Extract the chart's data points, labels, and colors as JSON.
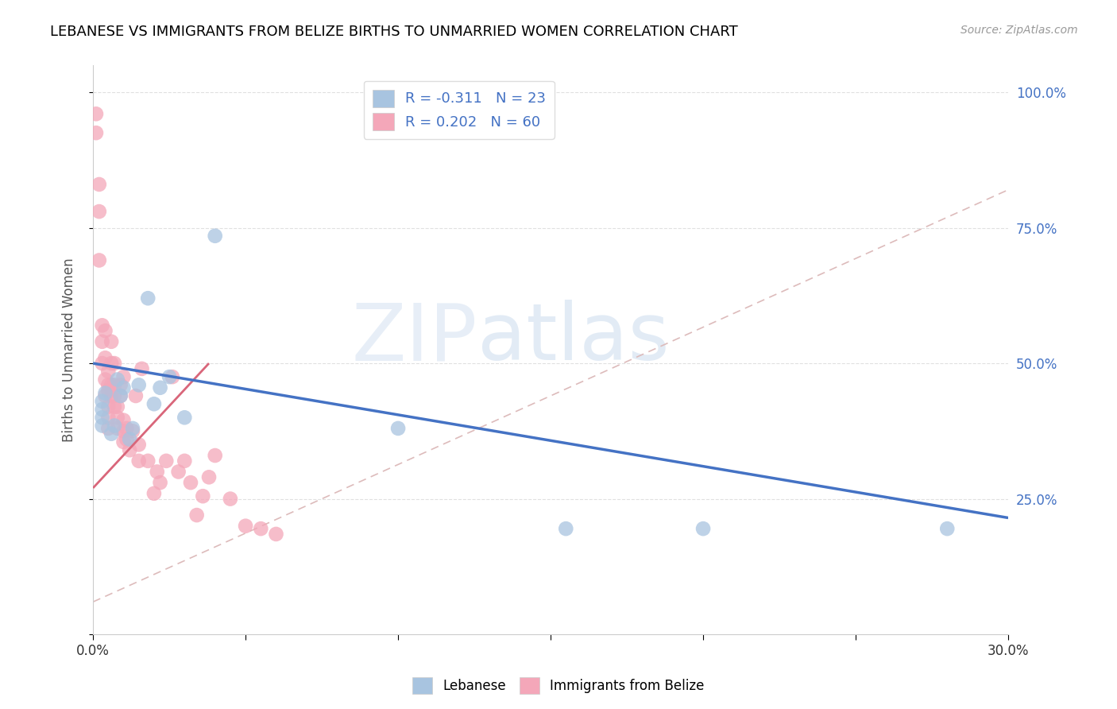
{
  "title": "LEBANESE VS IMMIGRANTS FROM BELIZE BIRTHS TO UNMARRIED WOMEN CORRELATION CHART",
  "source": "Source: ZipAtlas.com",
  "ylabel": "Births to Unmarried Women",
  "xlim": [
    0.0,
    0.3
  ],
  "ylim": [
    0.0,
    1.05
  ],
  "x_ticks": [
    0.0,
    0.05,
    0.1,
    0.15,
    0.2,
    0.25,
    0.3
  ],
  "x_tick_labels": [
    "0.0%",
    "",
    "",
    "",
    "",
    "",
    "30.0%"
  ],
  "y_ticks": [
    0.0,
    0.25,
    0.5,
    0.75,
    1.0
  ],
  "y_tick_labels_right": [
    "",
    "25.0%",
    "50.0%",
    "75.0%",
    "100.0%"
  ],
  "lebanese_color": "#a8c4e0",
  "belize_color": "#f4a7b9",
  "lebanese_line_color": "#4472c4",
  "belize_line_color": "#d9667a",
  "legend_r_lebanese": "R = -0.311",
  "legend_n_lebanese": "N = 23",
  "legend_r_belize": "R = 0.202",
  "legend_n_belize": "N = 60",
  "watermark_zip": "ZIP",
  "watermark_atlas": "atlas",
  "leb_line_x0": 0.0,
  "leb_line_y0": 0.5,
  "leb_line_x1": 0.3,
  "leb_line_y1": 0.215,
  "bel_line_x0": 0.0,
  "bel_line_y0": 0.27,
  "bel_line_x1": 0.038,
  "bel_line_y1": 0.5,
  "diag_line_color": "#ddbbbb",
  "lebanese_x": [
    0.003,
    0.003,
    0.003,
    0.003,
    0.004,
    0.006,
    0.007,
    0.008,
    0.009,
    0.01,
    0.012,
    0.013,
    0.015,
    0.018,
    0.02,
    0.022,
    0.025,
    0.03,
    0.04,
    0.1,
    0.155,
    0.2,
    0.28
  ],
  "lebanese_y": [
    0.385,
    0.4,
    0.415,
    0.43,
    0.445,
    0.37,
    0.385,
    0.47,
    0.44,
    0.455,
    0.36,
    0.38,
    0.46,
    0.62,
    0.425,
    0.455,
    0.475,
    0.4,
    0.735,
    0.38,
    0.195,
    0.195,
    0.195
  ],
  "belize_x": [
    0.001,
    0.001,
    0.002,
    0.002,
    0.002,
    0.003,
    0.003,
    0.003,
    0.004,
    0.004,
    0.004,
    0.004,
    0.005,
    0.005,
    0.005,
    0.005,
    0.005,
    0.005,
    0.006,
    0.006,
    0.006,
    0.006,
    0.007,
    0.007,
    0.007,
    0.007,
    0.008,
    0.008,
    0.008,
    0.009,
    0.009,
    0.01,
    0.01,
    0.01,
    0.01,
    0.011,
    0.011,
    0.012,
    0.013,
    0.014,
    0.015,
    0.015,
    0.016,
    0.018,
    0.02,
    0.021,
    0.022,
    0.024,
    0.026,
    0.028,
    0.03,
    0.032,
    0.034,
    0.036,
    0.038,
    0.04,
    0.045,
    0.05,
    0.055,
    0.06
  ],
  "belize_y": [
    0.925,
    0.96,
    0.78,
    0.83,
    0.69,
    0.5,
    0.54,
    0.57,
    0.56,
    0.44,
    0.47,
    0.51,
    0.38,
    0.4,
    0.42,
    0.45,
    0.46,
    0.485,
    0.44,
    0.46,
    0.5,
    0.54,
    0.42,
    0.44,
    0.46,
    0.5,
    0.38,
    0.4,
    0.42,
    0.44,
    0.46,
    0.355,
    0.375,
    0.395,
    0.475,
    0.36,
    0.38,
    0.34,
    0.375,
    0.44,
    0.32,
    0.35,
    0.49,
    0.32,
    0.26,
    0.3,
    0.28,
    0.32,
    0.475,
    0.3,
    0.32,
    0.28,
    0.22,
    0.255,
    0.29,
    0.33,
    0.25,
    0.2,
    0.195,
    0.185
  ]
}
